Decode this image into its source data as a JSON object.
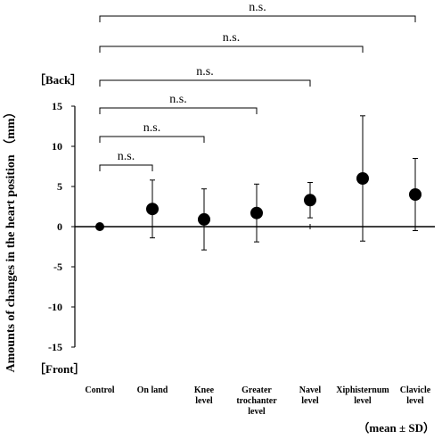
{
  "chart_data": {
    "type": "scatter",
    "ylabel": "Amounts of changes in the heart position （mm）",
    "ylim": [
      -15,
      15
    ],
    "yticks": [
      "15",
      "10",
      "5",
      "0",
      "-5",
      "-10",
      "-15"
    ],
    "categories": [
      "Control",
      "On land",
      "Knee\nlevel",
      "Greater\ntrochanter\nlevel",
      "Navel\nlevel",
      "Xiphisternum\nlevel",
      "Clavicle\nlevel"
    ],
    "series": [
      {
        "values": [
          0,
          2.2,
          0.9,
          1.7,
          3.3,
          6.0,
          4.0
        ],
        "sd": [
          0,
          3.6,
          3.8,
          3.6,
          2.2,
          7.8,
          4.5
        ]
      }
    ],
    "annotations": {
      "top_label": "［Back］",
      "bottom_label": "［Front］",
      "note": "（mean ± SD）"
    },
    "significance": [
      {
        "from": "Control",
        "to": "On land",
        "label": "n.s."
      },
      {
        "from": "Control",
        "to": "Knee\nlevel",
        "label": "n.s."
      },
      {
        "from": "Control",
        "to": "Greater\ntrochanter\nlevel",
        "label": "n.s."
      },
      {
        "from": "Control",
        "to": "Navel\nlevel",
        "label": "n.s."
      },
      {
        "from": "Control",
        "to": "Xiphisternum\nlevel",
        "label": "n.s."
      },
      {
        "from": "Control",
        "to": "Clavicle\nlevel",
        "label": "n.s."
      }
    ],
    "grid": false,
    "legend": "none"
  }
}
